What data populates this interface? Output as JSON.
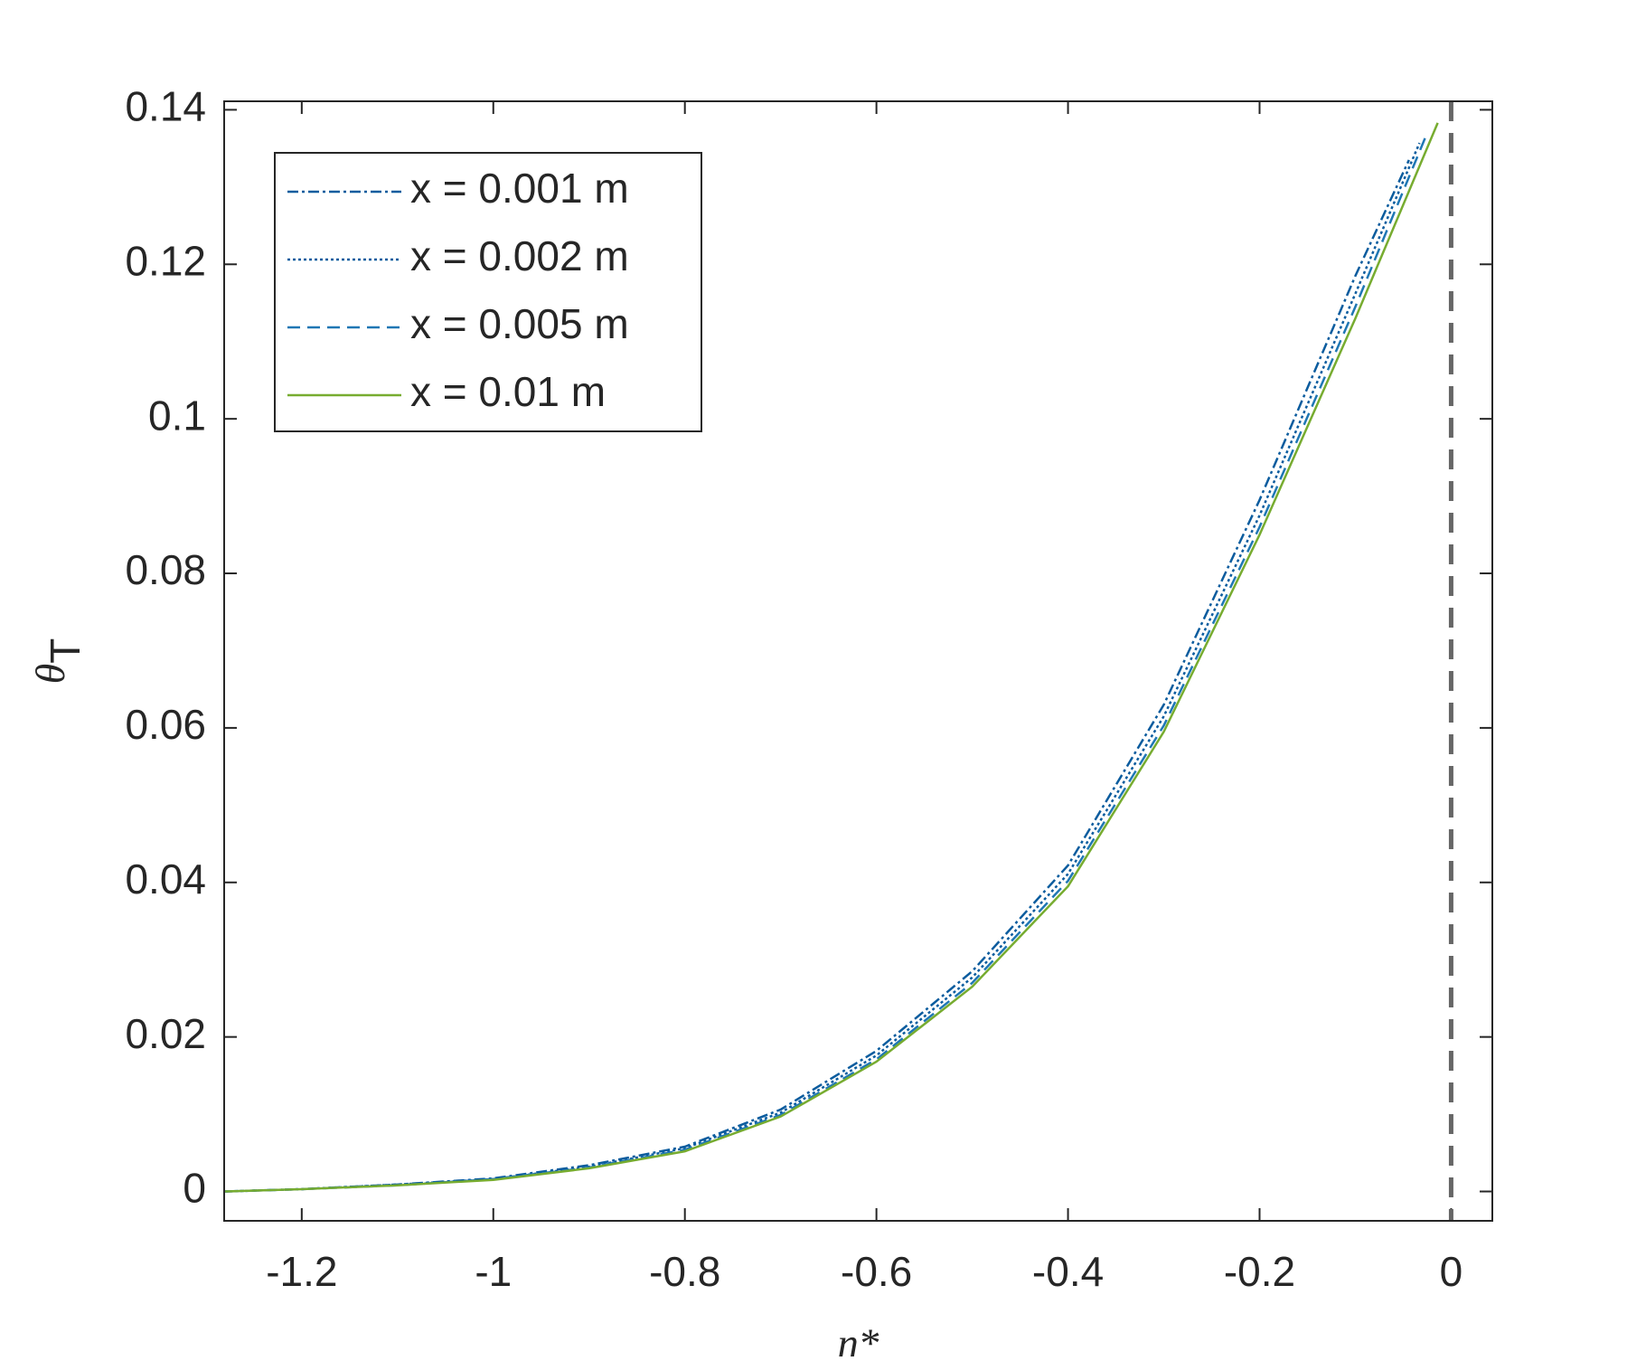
{
  "chart_data": {
    "type": "line",
    "xlabel": "η*",
    "ylabel": "θ",
    "ylabel_subscript": "T",
    "xlim": [
      -1.281,
      0.043
    ],
    "ylim": [
      -0.0038,
      0.1411
    ],
    "xticks": [
      -1.2,
      -1,
      -0.8,
      -0.6,
      -0.4,
      -0.2,
      0
    ],
    "yticks": [
      0,
      0.02,
      0.04,
      0.06,
      0.08,
      0.1,
      0.12,
      0.14
    ],
    "vline": 0,
    "vline_color": "#666666",
    "legend": "top-left",
    "series": [
      {
        "name": "x = 0.001 m",
        "color": "#0b5c9e",
        "dash": "dashdot",
        "x": [
          -1.28,
          -1.2,
          -1.1,
          -1.0,
          -0.9,
          -0.8,
          -0.7,
          -0.6,
          -0.5,
          -0.4,
          -0.3,
          -0.2,
          -0.1,
          -0.044
        ],
        "values": [
          0,
          0.0003,
          0.0009,
          0.0017,
          0.0034,
          0.0058,
          0.0106,
          0.0182,
          0.0285,
          0.0422,
          0.063,
          0.0895,
          0.1185,
          0.1335
        ]
      },
      {
        "name": "x = 0.002 m",
        "color": "#0b5c9e",
        "dash": "dotted",
        "x": [
          -1.28,
          -1.2,
          -1.1,
          -1.0,
          -0.9,
          -0.8,
          -0.7,
          -0.6,
          -0.5,
          -0.4,
          -0.3,
          -0.2,
          -0.1,
          -0.033
        ],
        "values": [
          0,
          0.0003,
          0.0009,
          0.0016,
          0.0032,
          0.0056,
          0.0102,
          0.0176,
          0.0277,
          0.0411,
          0.0615,
          0.0875,
          0.1162,
          0.1357
        ]
      },
      {
        "name": "x = 0.005 m",
        "color": "#1f77b4",
        "dash": "dashed",
        "x": [
          -1.28,
          -1.2,
          -1.1,
          -1.0,
          -0.9,
          -0.8,
          -0.7,
          -0.6,
          -0.5,
          -0.4,
          -0.3,
          -0.2,
          -0.1,
          -0.025
        ],
        "values": [
          0,
          0.0003,
          0.0008,
          0.0016,
          0.0031,
          0.0054,
          0.0099,
          0.0171,
          0.027,
          0.0402,
          0.0603,
          0.086,
          0.1145,
          0.137
        ]
      },
      {
        "name": "x = 0.01 m",
        "color": "#77ac30",
        "dash": "solid",
        "x": [
          -1.28,
          -1.2,
          -1.1,
          -1.0,
          -0.9,
          -0.8,
          -0.7,
          -0.6,
          -0.5,
          -0.4,
          -0.3,
          -0.2,
          -0.1,
          -0.014
        ],
        "values": [
          0,
          0.0003,
          0.0008,
          0.0015,
          0.003,
          0.0052,
          0.0097,
          0.0168,
          0.0265,
          0.0395,
          0.0595,
          0.085,
          0.113,
          0.1383
        ]
      }
    ]
  }
}
